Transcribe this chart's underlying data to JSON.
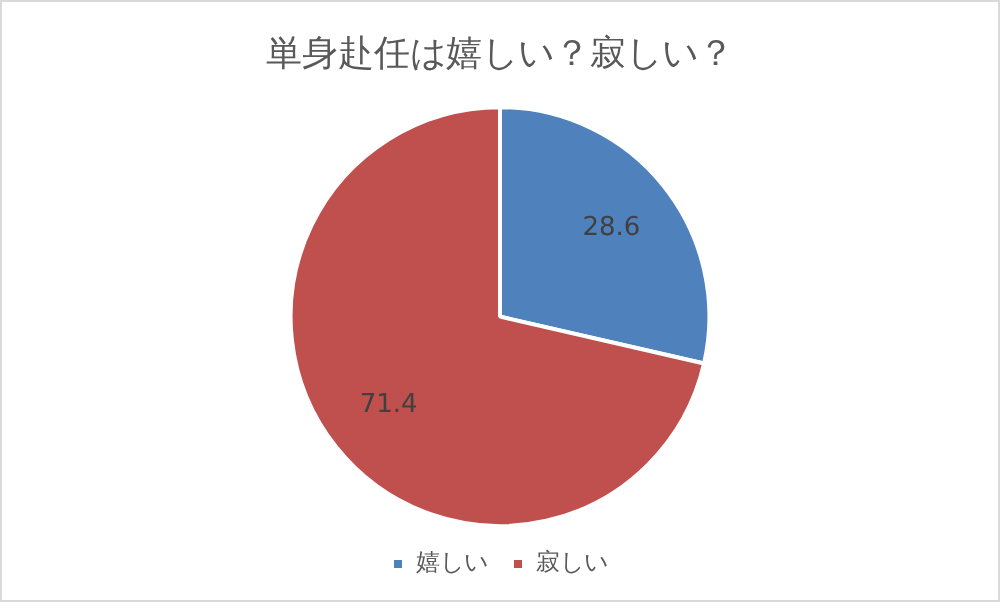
{
  "chart_data": {
    "type": "pie",
    "title": "単身赴任は嬉しい？寂しい？",
    "categories": [
      "嬉しい",
      "寂しい"
    ],
    "values": [
      28.6,
      71.4
    ],
    "colors": [
      "#4f81bd",
      "#c0504d"
    ],
    "data_labels": true,
    "legend": "bottom"
  }
}
